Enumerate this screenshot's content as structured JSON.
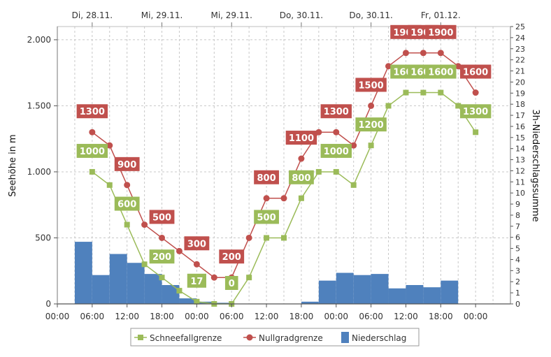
{
  "chart_data": {
    "type": "line",
    "top_date_labels": [
      "Di, 28.11.",
      "Mi, 29.11.",
      "Mi, 29.11.",
      "Do, 30.11.",
      "Do, 30.11.",
      "Fr, 01.12."
    ],
    "x_tick_labels": [
      "00:00",
      "06:00",
      "12:00",
      "18:00",
      "00:00",
      "06:00",
      "12:00",
      "18:00",
      "00:00",
      "06:00",
      "12:00",
      "18:00",
      "00:00"
    ],
    "y_left": {
      "label": "Seehöhe in m",
      "ylim": [
        0,
        2100
      ],
      "ticks": [
        0,
        500,
        1000,
        1500,
        2000
      ],
      "tick_labels": [
        "0",
        "500",
        "1.000",
        "1.500",
        "2.000"
      ]
    },
    "y_right": {
      "label": "3h-Niederschlagssumme",
      "ylim": [
        0,
        25
      ],
      "ticks": [
        0,
        1,
        2,
        3,
        4,
        5,
        6,
        7,
        8,
        9,
        10,
        11,
        12,
        13,
        14,
        15,
        16,
        17,
        18,
        19,
        20,
        21,
        22,
        23,
        24,
        25
      ]
    },
    "x_hours": [
      6,
      9,
      12,
      15,
      18,
      21,
      24,
      27,
      30,
      33,
      36,
      39,
      42,
      45,
      48,
      51,
      54,
      57,
      60,
      63,
      66,
      69,
      72
    ],
    "series": [
      {
        "name": "Schneefallgrenze",
        "color": "#9bbb59",
        "marker": "square",
        "values": [
          1000,
          900,
          600,
          300,
          200,
          100,
          17,
          0,
          0,
          200,
          500,
          500,
          800,
          1000,
          1000,
          900,
          1200,
          1500,
          1600,
          1600,
          1600,
          1500,
          1300
        ],
        "labels": [
          "1000",
          "",
          "600",
          "",
          "200",
          "",
          "17",
          "",
          "0",
          "",
          "500",
          "",
          "800",
          "",
          "1000",
          "",
          "1200",
          "",
          "1600",
          "1600",
          "1600",
          "",
          "1300"
        ]
      },
      {
        "name": "Nullgradgrenze",
        "color": "#c0504d",
        "marker": "circle",
        "values": [
          1300,
          1200,
          900,
          600,
          500,
          400,
          300,
          200,
          200,
          500,
          800,
          800,
          1100,
          1300,
          1300,
          1200,
          1500,
          1800,
          1900,
          1900,
          1900,
          1800,
          1600
        ],
        "labels": [
          "1300",
          "",
          "900",
          "",
          "500",
          "",
          "300",
          "",
          "200",
          "",
          "800",
          "",
          "1100",
          "",
          "1300",
          "",
          "1500",
          "",
          "1900",
          "1900",
          "1900",
          "",
          "1600"
        ]
      }
    ],
    "bars": {
      "name": "Niederschlag",
      "color": "#4f81bd",
      "axis": "right",
      "start_hours": [
        3,
        6,
        9,
        12,
        15,
        18,
        21,
        24,
        27,
        30,
        33,
        36,
        39,
        42,
        45,
        48,
        51,
        54,
        57,
        60,
        63,
        66,
        69
      ],
      "values": [
        5.6,
        2.6,
        4.5,
        3.7,
        2.7,
        1.7,
        0.5,
        0.2,
        0.1,
        0,
        0,
        0,
        0,
        0.2,
        2.1,
        2.8,
        2.6,
        2.7,
        1.4,
        1.7,
        1.5,
        2.1,
        0
      ]
    },
    "legend": {
      "placement": "bottom",
      "items": [
        "Schneefallgrenze",
        "Nullgradgrenze",
        "Niederschlag"
      ]
    },
    "grid": true
  }
}
